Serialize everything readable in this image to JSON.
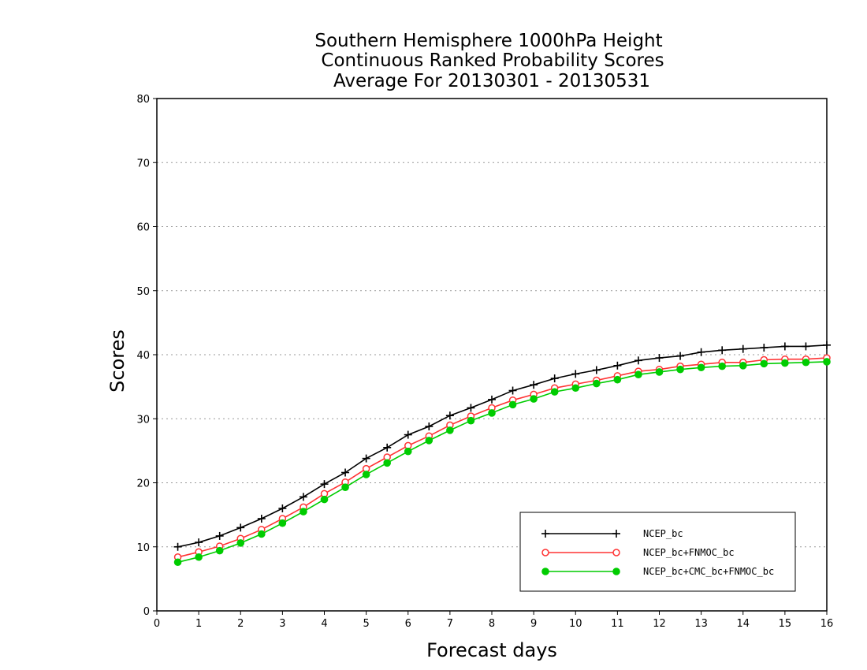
{
  "chart_data": {
    "type": "line",
    "title": [
      "Southern Hemisphere 1000hPa Height",
      "Continuous Ranked Probability Scores",
      "Average For 20130301 - 20130531"
    ],
    "xlabel": "Forecast days",
    "ylabel": "Scores",
    "xlim": [
      0,
      16
    ],
    "ylim": [
      0,
      80
    ],
    "xticks": [
      0,
      1,
      2,
      3,
      4,
      5,
      6,
      7,
      8,
      9,
      10,
      11,
      12,
      13,
      14,
      15,
      16
    ],
    "yticks": [
      0,
      10,
      20,
      30,
      40,
      50,
      60,
      70,
      80
    ],
    "grid": "horizontal dotted",
    "legend_position": "bottom-right",
    "x": [
      0.5,
      1,
      1.5,
      2,
      2.5,
      3,
      3.5,
      4,
      4.5,
      5,
      5.5,
      6,
      6.5,
      7,
      7.5,
      8,
      8.5,
      9,
      9.5,
      10,
      10.5,
      11,
      11.5,
      12,
      12.5,
      13,
      13.5,
      14,
      14.5,
      15,
      15.5,
      16
    ],
    "series": [
      {
        "name": "NCEP_bc",
        "color": "#000000",
        "marker": "plus",
        "values": [
          10.0,
          10.7,
          11.7,
          13.0,
          14.4,
          16.0,
          17.8,
          19.8,
          21.6,
          23.8,
          25.5,
          27.5,
          28.8,
          30.5,
          31.7,
          33.0,
          34.4,
          35.3,
          36.3,
          37.0,
          37.6,
          38.3,
          39.1,
          39.5,
          39.8,
          40.4,
          40.7,
          40.9,
          41.1,
          41.3,
          41.3,
          41.5
        ]
      },
      {
        "name": "NCEP_bc+FNMOC_bc",
        "color": "#ff3333",
        "marker": "open-circle",
        "values": [
          8.4,
          9.2,
          10.1,
          11.3,
          12.7,
          14.4,
          16.2,
          18.3,
          20.1,
          22.2,
          24.0,
          25.8,
          27.3,
          29.0,
          30.4,
          31.7,
          32.9,
          33.8,
          34.8,
          35.4,
          36.0,
          36.7,
          37.4,
          37.7,
          38.2,
          38.5,
          38.8,
          38.8,
          39.2,
          39.3,
          39.3,
          39.5
        ]
      },
      {
        "name": "NCEP_bc+CMC_bc+FNMOC_bc",
        "color": "#00cc00",
        "marker": "filled-circle",
        "values": [
          7.6,
          8.4,
          9.4,
          10.6,
          12.0,
          13.7,
          15.5,
          17.4,
          19.3,
          21.3,
          23.1,
          24.9,
          26.6,
          28.2,
          29.7,
          30.9,
          32.2,
          33.1,
          34.2,
          34.8,
          35.5,
          36.1,
          36.9,
          37.3,
          37.7,
          38.0,
          38.2,
          38.3,
          38.6,
          38.7,
          38.8,
          38.9
        ]
      }
    ]
  }
}
